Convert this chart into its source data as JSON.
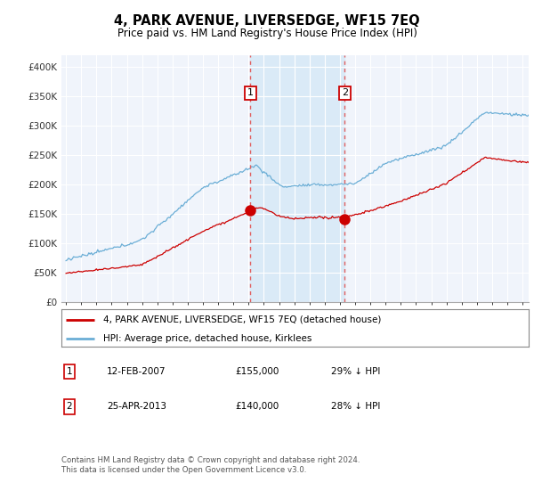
{
  "title": "4, PARK AVENUE, LIVERSEDGE, WF15 7EQ",
  "subtitle": "Price paid vs. HM Land Registry's House Price Index (HPI)",
  "legend_line1": "4, PARK AVENUE, LIVERSEDGE, WF15 7EQ (detached house)",
  "legend_line2": "HPI: Average price, detached house, Kirklees",
  "footnote": "Contains HM Land Registry data © Crown copyright and database right 2024.\nThis data is licensed under the Open Government Licence v3.0.",
  "transaction1_label": "1",
  "transaction1_date": "12-FEB-2007",
  "transaction1_price": "£155,000",
  "transaction1_hpi": "29% ↓ HPI",
  "transaction2_label": "2",
  "transaction2_date": "25-APR-2013",
  "transaction2_price": "£140,000",
  "transaction2_hpi": "28% ↓ HPI",
  "hpi_color": "#6baed6",
  "price_color": "#cc0000",
  "shade_color": "#daeaf7",
  "marker_color": "#cc0000",
  "vline_color": "#e06060",
  "plot_bg": "#f0f4fb",
  "ylim": [
    0,
    420000
  ],
  "yticks": [
    0,
    50000,
    100000,
    150000,
    200000,
    250000,
    300000,
    350000,
    400000
  ],
  "ytick_labels": [
    "£0",
    "£50K",
    "£100K",
    "£150K",
    "£200K",
    "£250K",
    "£300K",
    "£350K",
    "£400K"
  ],
  "transaction1_x": 2007.12,
  "transaction1_y": 155000,
  "transaction2_x": 2013.32,
  "transaction2_y": 140000,
  "xlim_left": 1994.7,
  "xlim_right": 2025.4
}
